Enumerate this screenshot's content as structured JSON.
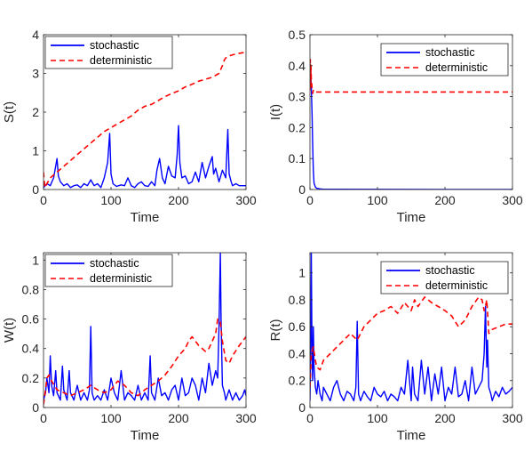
{
  "colors": {
    "stochastic": "#0000ff",
    "deterministic": "#ff0000",
    "axis": "#262626",
    "background": "#ffffff"
  },
  "chart_data": [
    {
      "type": "line",
      "ylabel": "S(t)",
      "xlabel": "Time",
      "xlim": [
        0,
        300
      ],
      "ylim": [
        0,
        4
      ],
      "xticks": [
        0,
        100,
        200,
        300
      ],
      "xtick_labels": [
        "0",
        "100",
        "200",
        "300"
      ],
      "yticks": [
        0,
        1,
        2,
        3,
        4
      ],
      "ytick_labels": [
        "0",
        "1",
        "2",
        "3",
        "4"
      ],
      "legend": "top-left",
      "grid": false,
      "series": [
        {
          "name": "stochastic",
          "style": "solid",
          "x": [
            0,
            5,
            10,
            15,
            20,
            22,
            25,
            30,
            35,
            40,
            45,
            50,
            55,
            60,
            65,
            70,
            75,
            80,
            85,
            90,
            95,
            98,
            100,
            103,
            108,
            115,
            120,
            125,
            130,
            135,
            140,
            145,
            150,
            155,
            160,
            165,
            168,
            172,
            176,
            180,
            185,
            190,
            195,
            198,
            200,
            202,
            205,
            210,
            215,
            220,
            225,
            230,
            235,
            240,
            245,
            250,
            252,
            255,
            260,
            265,
            270,
            273,
            275,
            278,
            280,
            285,
            290,
            295,
            300
          ],
          "y": [
            0.05,
            0.15,
            0.1,
            0.3,
            0.8,
            0.35,
            0.2,
            0.1,
            0.15,
            0.05,
            0.1,
            0.12,
            0.05,
            0.15,
            0.1,
            0.25,
            0.1,
            0.15,
            0.05,
            0.3,
            0.7,
            1.45,
            0.4,
            0.15,
            0.08,
            0.12,
            0.1,
            0.3,
            0.1,
            0.05,
            0.15,
            0.2,
            0.1,
            0.08,
            0.2,
            0.1,
            0.5,
            0.8,
            0.3,
            0.15,
            0.6,
            0.35,
            0.3,
            0.9,
            1.65,
            0.7,
            0.3,
            0.35,
            0.15,
            0.2,
            0.45,
            0.2,
            0.7,
            0.3,
            0.6,
            0.85,
            0.4,
            0.55,
            0.2,
            0.5,
            0.3,
            1.55,
            0.4,
            0.2,
            0.1,
            0.15,
            0.1,
            0.1,
            0.1
          ]
        },
        {
          "name": "deterministic",
          "style": "dashed",
          "x": [
            0,
            2,
            5,
            10,
            20,
            30,
            40,
            50,
            60,
            70,
            80,
            90,
            100,
            110,
            120,
            130,
            140,
            150,
            160,
            170,
            180,
            190,
            200,
            210,
            220,
            230,
            240,
            250,
            260,
            265,
            268,
            270,
            275,
            280,
            290,
            300
          ],
          "y": [
            0.45,
            0.05,
            0.15,
            0.3,
            0.45,
            0.6,
            0.75,
            0.9,
            1.05,
            1.2,
            1.35,
            1.5,
            1.6,
            1.7,
            1.8,
            1.9,
            2.05,
            2.15,
            2.2,
            2.3,
            2.4,
            2.48,
            2.55,
            2.65,
            2.72,
            2.8,
            2.85,
            2.9,
            3.0,
            3.2,
            3.35,
            3.4,
            3.45,
            3.48,
            3.52,
            3.55
          ]
        }
      ]
    },
    {
      "type": "line",
      "ylabel": "I(t)",
      "xlabel": "Time",
      "xlim": [
        0,
        300
      ],
      "ylim": [
        0,
        0.5
      ],
      "xticks": [
        0,
        100,
        200,
        300
      ],
      "xtick_labels": [
        "0",
        "100",
        "200",
        "300"
      ],
      "yticks": [
        0,
        0.1,
        0.2,
        0.3,
        0.4,
        0.5
      ],
      "ytick_labels": [
        "0",
        "0.1",
        "0.2",
        "0.3",
        "0.4",
        "0.5"
      ],
      "legend": "top-right",
      "grid": false,
      "series": [
        {
          "name": "stochastic",
          "style": "solid",
          "x": [
            0,
            0.5,
            1,
            2,
            3,
            4,
            5,
            6,
            8,
            10,
            15,
            20,
            300
          ],
          "y": [
            0.35,
            0.4,
            0.38,
            0.33,
            0.25,
            0.15,
            0.06,
            0.02,
            0.008,
            0.004,
            0.002,
            0.001,
            0.0
          ]
        },
        {
          "name": "deterministic",
          "style": "dashed",
          "x": [
            0,
            0.5,
            1,
            1.5,
            2,
            3,
            4,
            5,
            6,
            300
          ],
          "y": [
            0.32,
            0.42,
            0.33,
            0.4,
            0.36,
            0.33,
            0.31,
            0.32,
            0.315,
            0.315
          ]
        }
      ]
    },
    {
      "type": "line",
      "ylabel": "W(t)",
      "xlabel": "Time",
      "xlim": [
        0,
        300
      ],
      "ylim": [
        0,
        1.05
      ],
      "xticks": [
        0,
        100,
        200,
        300
      ],
      "xtick_labels": [
        "0",
        "100",
        "200",
        "300"
      ],
      "yticks": [
        0,
        0.2,
        0.4,
        0.6,
        0.8,
        1
      ],
      "ytick_labels": [
        "0",
        "0.2",
        "0.4",
        "0.6",
        "0.8",
        "1"
      ],
      "legend": "top-left",
      "grid": false,
      "series": [
        {
          "name": "stochastic",
          "style": "solid",
          "x": [
            0,
            3,
            5,
            8,
            10,
            12,
            15,
            18,
            20,
            25,
            28,
            30,
            35,
            38,
            40,
            45,
            50,
            55,
            60,
            65,
            68,
            70,
            72,
            75,
            80,
            85,
            90,
            95,
            100,
            105,
            110,
            115,
            120,
            125,
            130,
            135,
            140,
            145,
            150,
            155,
            158,
            160,
            165,
            170,
            175,
            180,
            185,
            190,
            195,
            200,
            205,
            210,
            215,
            220,
            225,
            230,
            235,
            240,
            245,
            250,
            255,
            258,
            260,
            262,
            263,
            265,
            268,
            270,
            275,
            280,
            285,
            290,
            295,
            298,
            300
          ],
          "y": [
            0.05,
            0.1,
            0.2,
            0.1,
            0.35,
            0.15,
            0.08,
            0.25,
            0.1,
            0.05,
            0.28,
            0.12,
            0.05,
            0.25,
            0.1,
            0.05,
            0.15,
            0.05,
            0.1,
            0.05,
            0.12,
            0.55,
            0.1,
            0.05,
            0.08,
            0.05,
            0.12,
            0.05,
            0.2,
            0.1,
            0.05,
            0.25,
            0.05,
            0.1,
            0.08,
            0.05,
            0.15,
            0.05,
            0.1,
            0.05,
            0.35,
            0.1,
            0.05,
            0.2,
            0.08,
            0.1,
            0.05,
            0.12,
            0.15,
            0.05,
            0.2,
            0.08,
            0.1,
            0.2,
            0.15,
            0.05,
            0.2,
            0.1,
            0.3,
            0.15,
            0.25,
            0.2,
            0.55,
            1.05,
            0.6,
            0.15,
            0.1,
            0.05,
            0.12,
            0.05,
            0.1,
            0.05,
            0.08,
            0.12,
            0.08
          ]
        },
        {
          "name": "deterministic",
          "style": "dashed",
          "x": [
            0,
            3,
            5,
            8,
            12,
            20,
            30,
            40,
            50,
            60,
            70,
            80,
            90,
            100,
            110,
            120,
            130,
            140,
            150,
            160,
            170,
            180,
            190,
            200,
            210,
            215,
            220,
            230,
            240,
            245,
            250,
            255,
            258,
            262,
            265,
            270,
            275,
            280,
            290,
            300
          ],
          "y": [
            0.02,
            0.12,
            0.2,
            0.22,
            0.18,
            0.12,
            0.1,
            0.08,
            0.1,
            0.12,
            0.15,
            0.12,
            0.1,
            0.12,
            0.18,
            0.15,
            0.1,
            0.08,
            0.12,
            0.15,
            0.18,
            0.22,
            0.28,
            0.35,
            0.4,
            0.45,
            0.48,
            0.42,
            0.38,
            0.4,
            0.45,
            0.5,
            0.6,
            0.58,
            0.45,
            0.32,
            0.3,
            0.35,
            0.42,
            0.48
          ]
        }
      ]
    },
    {
      "type": "line",
      "ylabel": "R(t)",
      "xlabel": "Time",
      "xlim": [
        0,
        300
      ],
      "ylim": [
        0,
        1.15
      ],
      "xticks": [
        0,
        100,
        200,
        300
      ],
      "xtick_labels": [
        "0",
        "100",
        "200",
        "300"
      ],
      "yticks": [
        0,
        0.2,
        0.4,
        0.6,
        0.8,
        1
      ],
      "ytick_labels": [
        "0",
        "0.2",
        "0.4",
        "0.6",
        "0.8",
        "1"
      ],
      "legend": "top-right",
      "grid": false,
      "series": [
        {
          "name": "stochastic",
          "style": "solid",
          "x": [
            0,
            1,
            2,
            3,
            4,
            5,
            6,
            8,
            10,
            12,
            15,
            18,
            20,
            25,
            30,
            35,
            40,
            45,
            50,
            55,
            60,
            65,
            68,
            70,
            72,
            75,
            80,
            85,
            90,
            95,
            100,
            105,
            110,
            115,
            120,
            125,
            130,
            135,
            140,
            145,
            150,
            152,
            155,
            160,
            165,
            170,
            175,
            180,
            185,
            190,
            195,
            200,
            205,
            210,
            215,
            220,
            225,
            230,
            235,
            240,
            245,
            250,
            255,
            258,
            260,
            262,
            263,
            265,
            268,
            270,
            275,
            280,
            285,
            290,
            295,
            300
          ],
          "y": [
            0.05,
            0.5,
            1.15,
            0.4,
            0.2,
            0.6,
            0.3,
            0.15,
            0.1,
            0.2,
            0.1,
            0.05,
            0.15,
            0.1,
            0.05,
            0.15,
            0.2,
            0.1,
            0.05,
            0.12,
            0.1,
            0.05,
            0.15,
            0.64,
            0.1,
            0.05,
            0.12,
            0.08,
            0.05,
            0.15,
            0.1,
            0.08,
            0.12,
            0.05,
            0.1,
            0.08,
            0.05,
            0.15,
            0.1,
            0.35,
            0.05,
            0.3,
            0.1,
            0.05,
            0.35,
            0.1,
            0.3,
            0.05,
            0.25,
            0.1,
            0.3,
            0.05,
            0.15,
            0.1,
            0.3,
            0.08,
            0.1,
            0.2,
            0.05,
            0.3,
            0.1,
            0.15,
            0.2,
            0.4,
            0.75,
            0.3,
            0.5,
            0.15,
            0.1,
            0.05,
            0.12,
            0.08,
            0.15,
            0.1,
            0.12,
            0.15
          ]
        },
        {
          "name": "deterministic",
          "style": "dashed",
          "x": [
            0,
            2,
            5,
            8,
            10,
            15,
            20,
            30,
            40,
            50,
            60,
            70,
            80,
            90,
            100,
            110,
            120,
            130,
            140,
            150,
            155,
            160,
            170,
            180,
            190,
            200,
            210,
            220,
            230,
            240,
            250,
            255,
            258,
            260,
            262,
            265,
            270,
            280,
            290,
            300
          ],
          "y": [
            0.15,
            0.4,
            0.45,
            0.35,
            0.3,
            0.28,
            0.35,
            0.4,
            0.45,
            0.5,
            0.55,
            0.5,
            0.6,
            0.65,
            0.7,
            0.72,
            0.75,
            0.7,
            0.78,
            0.72,
            0.8,
            0.75,
            0.82,
            0.78,
            0.75,
            0.72,
            0.68,
            0.6,
            0.65,
            0.75,
            0.82,
            0.8,
            0.72,
            0.75,
            0.8,
            0.55,
            0.58,
            0.6,
            0.62,
            0.62
          ]
        }
      ]
    }
  ]
}
